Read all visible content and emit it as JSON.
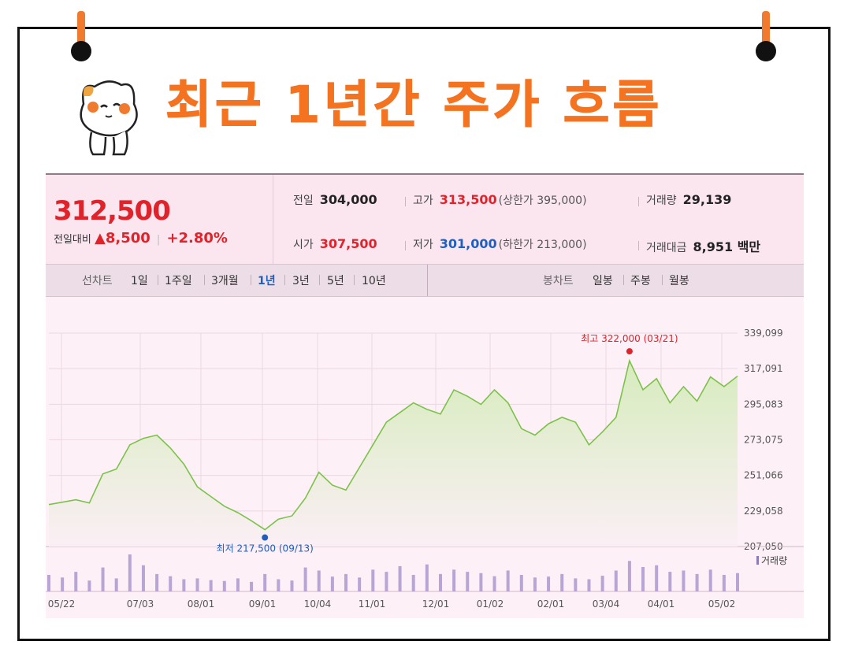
{
  "title": "최근 1년간 주가 흐름",
  "summary": {
    "price": "312,500",
    "change_label": "전일대비",
    "change_value": "▲8,500",
    "change_pct": "+2.80%",
    "prev_label": "전일",
    "prev_value": "304,000",
    "open_label": "시가",
    "open_value": "307,500",
    "high_label": "고가",
    "high_value": "313,500",
    "upper_limit": "(상한가 395,000)",
    "low_label": "저가",
    "low_value": "301,000",
    "lower_limit": "(하한가 213,000)",
    "volume_label": "거래량",
    "volume_value": "29,139",
    "amount_label": "거래대금",
    "amount_value": "8,951 백만"
  },
  "tabs": {
    "line_label": "선차트",
    "periods": [
      "1일",
      "1주일",
      "3개월",
      "1년",
      "3년",
      "5년",
      "10년"
    ],
    "active_period": "1년",
    "candle_label": "봉차트",
    "candles": [
      "일봉",
      "주봉",
      "월봉"
    ]
  },
  "colors": {
    "accent": "#f47320",
    "up": "#e0222a",
    "down": "#1f5fbf",
    "line": "#7cc24a",
    "area": "#d6ecbd"
  },
  "chart_data": {
    "type": "area",
    "x": [
      "05/22",
      "05/29",
      "06/05",
      "06/12",
      "06/19",
      "06/26",
      "07/03",
      "07/10",
      "07/17",
      "07/24",
      "07/31",
      "08/07",
      "08/14",
      "08/21",
      "08/28",
      "09/04",
      "09/13",
      "09/20",
      "09/27",
      "10/04",
      "10/11",
      "10/18",
      "10/25",
      "11/01",
      "11/08",
      "11/15",
      "11/22",
      "11/29",
      "12/06",
      "12/13",
      "12/20",
      "12/27",
      "01/03",
      "01/10",
      "01/17",
      "01/24",
      "01/31",
      "02/07",
      "02/14",
      "02/21",
      "02/28",
      "03/07",
      "03/14",
      "03/21",
      "03/28",
      "04/04",
      "04/11",
      "04/18",
      "04/25",
      "05/02",
      "05/09",
      "05/16"
    ],
    "values": [
      233000,
      234500,
      236000,
      234000,
      252000,
      255000,
      270000,
      274000,
      276000,
      268000,
      258000,
      244000,
      238000,
      232000,
      228000,
      223000,
      217500,
      224000,
      226000,
      237000,
      253000,
      245000,
      242000,
      256000,
      270000,
      284000,
      290000,
      296000,
      292000,
      289000,
      304000,
      300000,
      295000,
      304000,
      296000,
      280000,
      276000,
      283000,
      287000,
      284000,
      270000,
      278000,
      287000,
      322000,
      304000,
      311000,
      296000,
      306000,
      297000,
      312000,
      306000,
      312500
    ],
    "xticks": [
      "05/22",
      "07/03",
      "08/01",
      "09/01",
      "10/04",
      "11/01",
      "12/01",
      "01/02",
      "02/01",
      "03/04",
      "04/01",
      "05/02"
    ],
    "yticks": [
      "339,099",
      "317,091",
      "295,083",
      "273,075",
      "251,066",
      "229,058",
      "207,050"
    ],
    "ylim": [
      207050,
      339099
    ],
    "max_annotation": "최고 322,000 (03/21)",
    "min_annotation": "최저 217,500 (09/13)",
    "volume_label": "거래량",
    "volume": [
      38,
      32,
      45,
      25,
      55,
      30,
      85,
      60,
      40,
      35,
      28,
      30,
      26,
      24,
      30,
      22,
      40,
      28,
      25,
      55,
      48,
      34,
      40,
      32,
      50,
      45,
      58,
      38,
      62,
      40,
      50,
      45,
      42,
      35,
      48,
      38,
      32,
      34,
      40,
      30,
      28,
      36,
      48,
      70,
      56,
      60,
      45,
      48,
      40,
      50,
      38,
      42
    ]
  }
}
